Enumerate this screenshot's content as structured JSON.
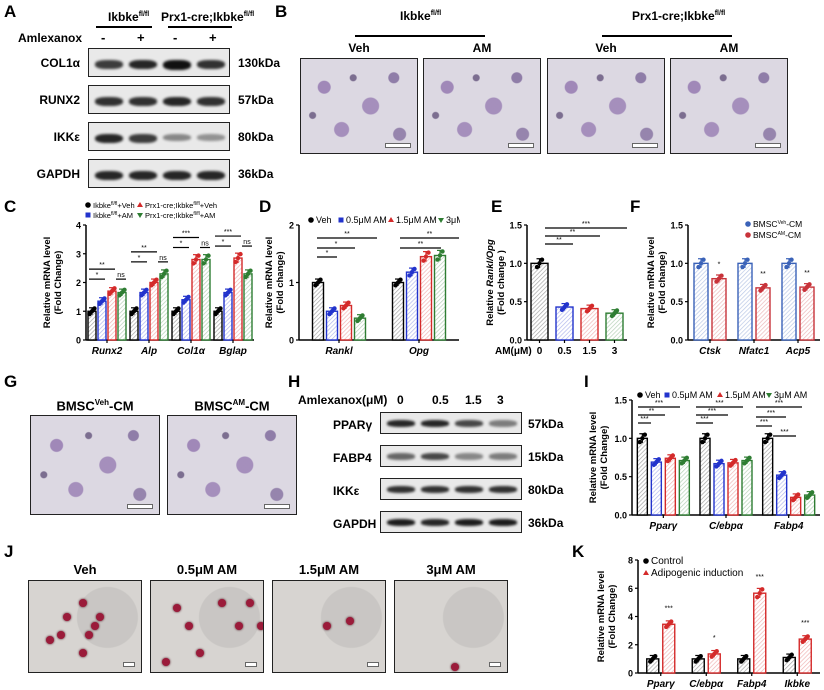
{
  "panels": {
    "A": {
      "label": "A",
      "group1": "Ikbke",
      "group1_sup": "fl/fl",
      "group2": "Prx1-cre;Ikbke",
      "group2_sup": "fl/fl",
      "treatment_label": "Amlexanox",
      "treatment_signs": [
        "-",
        "+",
        "-",
        "+"
      ],
      "rows": [
        {
          "protein": "COL1α",
          "kda": "130kDa",
          "intensity": [
            0.8,
            0.9,
            1.0,
            0.85
          ]
        },
        {
          "protein": "RUNX2",
          "kda": "57kDa",
          "intensity": [
            0.85,
            0.85,
            0.9,
            0.85
          ]
        },
        {
          "protein": "IKKε",
          "kda": "80kDa",
          "intensity": [
            0.9,
            0.8,
            0.45,
            0.4
          ]
        },
        {
          "protein": "GAPDH",
          "kda": "36kDa",
          "intensity": [
            0.9,
            0.9,
            0.9,
            0.9
          ]
        }
      ]
    },
    "B": {
      "label": "B",
      "group1": "Ikbke",
      "group1_sup": "fl/fl",
      "group2": "Prx1-cre;Ikbke",
      "group2_sup": "fl/fl",
      "images": [
        "Veh",
        "AM",
        "Veh",
        "AM"
      ]
    },
    "G": {
      "label": "G",
      "images": [
        {
          "base": "BMSC",
          "sup": "Veh",
          "suffix": "-CM"
        },
        {
          "base": "BMSC",
          "sup": "AM",
          "suffix": "-CM"
        }
      ]
    },
    "H": {
      "label": "H",
      "treatment_label": "Amlexanox(μM)",
      "doses": [
        "0",
        "0.5",
        "1.5",
        "3"
      ],
      "rows": [
        {
          "protein": "PPARγ",
          "kda": "57kDa",
          "intensity": [
            0.9,
            0.9,
            0.75,
            0.5
          ]
        },
        {
          "protein": "FABP4",
          "kda": "15kDa",
          "intensity": [
            0.6,
            0.75,
            0.45,
            0.5
          ]
        },
        {
          "protein": "IKKε",
          "kda": "80kDa",
          "intensity": [
            0.85,
            0.85,
            0.85,
            0.85
          ]
        },
        {
          "protein": "GAPDH",
          "kda": "36kDa",
          "intensity": [
            0.95,
            0.9,
            0.95,
            0.95
          ]
        }
      ]
    },
    "J": {
      "label": "J",
      "images": [
        "Veh",
        "0.5μM AM",
        "1.5μM AM",
        "3μM AM"
      ]
    }
  },
  "chart_data": [
    {
      "panel": "C",
      "type": "bar",
      "ylabel": "Relative mRNA level (Fold Change)",
      "ylim": [
        0,
        4
      ],
      "yticks": [
        0,
        1,
        2,
        3,
        4
      ],
      "categories": [
        "Runx2",
        "Alp",
        "Col1α",
        "Bglap"
      ],
      "legend": [
        "Ikbke fl/fl+Veh",
        "Ikbke fl/fl+AM",
        "Prx1-cre;Ikbke fl/fl+Veh",
        "Prx1-cre;Ikbke fl/fl+AM"
      ],
      "series": [
        {
          "name": "Ikbke fl/fl+Veh",
          "color": "#000000",
          "values": [
            1.0,
            1.0,
            1.0,
            1.0
          ]
        },
        {
          "name": "Ikbke fl/fl+AM",
          "color": "#2233cc",
          "values": [
            1.35,
            1.65,
            1.4,
            1.65
          ]
        },
        {
          "name": "Prx1-cre;Ikbke fl/fl+Veh",
          "color": "#d42a2a",
          "values": [
            1.7,
            2.0,
            2.8,
            2.85
          ]
        },
        {
          "name": "Prx1-cre;Ikbke fl/fl+AM",
          "color": "#2e7d32",
          "values": [
            1.65,
            2.3,
            2.8,
            2.3
          ]
        }
      ],
      "significance": [
        [
          "*",
          "**",
          "ns"
        ],
        [
          "*",
          "**",
          "ns"
        ],
        [
          "*",
          "***",
          "ns"
        ],
        [
          "*",
          "***",
          "ns"
        ]
      ]
    },
    {
      "panel": "D",
      "type": "bar",
      "ylabel": "Relative mRNA level (Fold change)",
      "ylim": [
        0,
        2
      ],
      "yticks": [
        0,
        1,
        2
      ],
      "categories": [
        "Rankl",
        "Opg"
      ],
      "legend": [
        "Veh",
        "0.5μM AM",
        "1.5μM AM",
        "3μM AM"
      ],
      "series": [
        {
          "name": "Veh",
          "color": "#000000",
          "values": [
            1.0,
            1.0
          ]
        },
        {
          "name": "0.5μM AM",
          "color": "#2233cc",
          "values": [
            0.5,
            1.18
          ]
        },
        {
          "name": "1.5μM AM",
          "color": "#d42a2a",
          "values": [
            0.6,
            1.45
          ]
        },
        {
          "name": "3μM AM",
          "color": "#2e7d32",
          "values": [
            0.38,
            1.47
          ]
        }
      ],
      "significance": [
        [
          "*",
          "*",
          "**"
        ],
        [
          "**",
          "**"
        ]
      ]
    },
    {
      "panel": "E",
      "type": "bar",
      "ylabel": "Relative Rankl/Opg (Fold change)",
      "xlabel": "AM(μM)",
      "ylim": [
        0,
        1.5
      ],
      "yticks": [
        "0.0",
        "0.5",
        "1.0",
        "1.5"
      ],
      "categories": [
        "0",
        "0.5",
        "1.5",
        "3"
      ],
      "colors": [
        "#000000",
        "#2233cc",
        "#d42a2a",
        "#2e7d32"
      ],
      "values": [
        1.0,
        0.43,
        0.41,
        0.35
      ],
      "significance": [
        "**",
        "**",
        "***"
      ]
    },
    {
      "panel": "F",
      "type": "bar",
      "ylabel": "Relative mRNA level (Fold change)",
      "ylim": [
        0,
        1.5
      ],
      "yticks": [
        "0.0",
        "0.5",
        "1.0",
        "1.5"
      ],
      "categories": [
        "Ctsk",
        "Nfatc1",
        "Acp5"
      ],
      "legend": [
        "BMSC Veh-CM",
        "BMSC AM-CM"
      ],
      "series": [
        {
          "name": "BMSC Veh-CM",
          "color": "#3a62b8",
          "values": [
            1.0,
            1.0,
            1.0
          ]
        },
        {
          "name": "BMSC AM-CM",
          "color": "#c8333a",
          "values": [
            0.8,
            0.68,
            0.69
          ]
        }
      ],
      "significance": [
        "*",
        "**",
        "**"
      ]
    },
    {
      "panel": "I",
      "type": "bar",
      "ylabel": "Relative mRNA level (Fold Change)",
      "ylim": [
        0,
        1.5
      ],
      "yticks": [
        "0.0",
        "0.5",
        "1.0",
        "1.5"
      ],
      "categories": [
        "Pparγ",
        "C/ebpα",
        "Fabp4"
      ],
      "legend": [
        "Veh",
        "0.5μM AM",
        "1.5μM AM",
        "3μM AM"
      ],
      "series": [
        {
          "name": "Veh",
          "color": "#000000",
          "values": [
            1.0,
            1.0,
            1.0
          ]
        },
        {
          "name": "0.5μM AM",
          "color": "#2233cc",
          "values": [
            0.69,
            0.67,
            0.52
          ]
        },
        {
          "name": "1.5μM AM",
          "color": "#d42a2a",
          "values": [
            0.74,
            0.68,
            0.23
          ]
        },
        {
          "name": "3μM AM",
          "color": "#2e7d32",
          "values": [
            0.71,
            0.71,
            0.26
          ]
        }
      ],
      "significance": [
        [
          "***",
          "**",
          "***"
        ],
        [
          "***",
          "***",
          "***"
        ],
        [
          "***",
          "***",
          "***",
          "***"
        ]
      ]
    },
    {
      "panel": "K",
      "type": "bar",
      "ylabel": "Relative mRNA level (Fold Change)",
      "ylim": [
        0,
        8
      ],
      "yticks": [
        0,
        2,
        4,
        6,
        8
      ],
      "categories": [
        "Pparγ",
        "C/ebpα",
        "Fabp4",
        "Ikbke"
      ],
      "legend": [
        "Control",
        "Adipogenic induction"
      ],
      "series": [
        {
          "name": "Control",
          "color": "#000000",
          "values": [
            1.0,
            1.0,
            1.0,
            1.1
          ]
        },
        {
          "name": "Adipogenic induction",
          "color": "#d42a2a",
          "values": [
            3.45,
            1.35,
            5.65,
            2.4
          ]
        }
      ],
      "significance": [
        "***",
        "*",
        "***",
        "***"
      ]
    }
  ]
}
